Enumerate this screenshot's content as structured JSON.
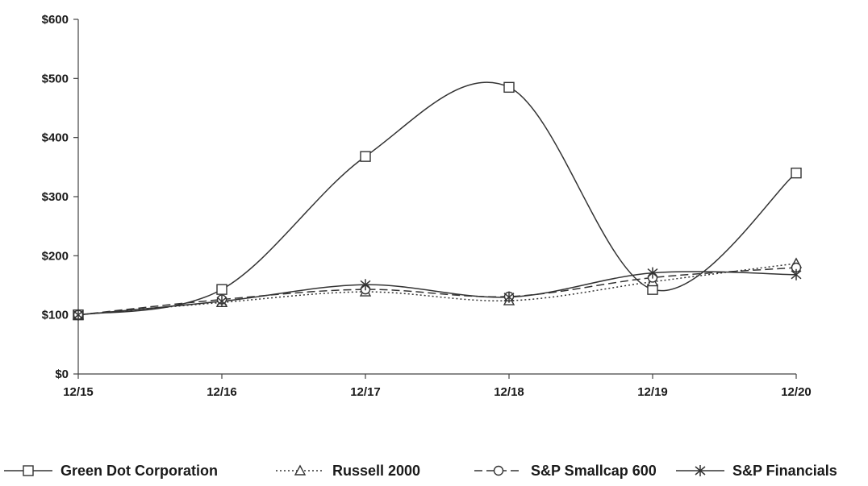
{
  "chart_data": {
    "type": "line",
    "title": "",
    "xlabel": "",
    "ylabel": "",
    "categories": [
      "12/15",
      "12/16",
      "12/17",
      "12/18",
      "12/19",
      "12/20"
    ],
    "y_ticks": [
      "$0",
      "$100",
      "$200",
      "$300",
      "$400",
      "$500",
      "$600"
    ],
    "ylim": [
      0,
      600
    ],
    "grid": false,
    "legend_position": "bottom",
    "series": [
      {
        "name": "Green Dot Corporation",
        "marker": "square",
        "dash": "solid",
        "values": [
          100,
          143,
          368,
          485,
          143,
          340
        ]
      },
      {
        "name": "Russell 2000",
        "marker": "triangle",
        "dash": "dotted",
        "values": [
          100,
          121,
          139,
          124,
          156,
          187
        ]
      },
      {
        "name": "S&P Smallcap 600",
        "marker": "circle",
        "dash": "dashed",
        "values": [
          100,
          126,
          143,
          131,
          163,
          180
        ]
      },
      {
        "name": "S&P Financials",
        "marker": "asterisk",
        "dash": "solid",
        "values": [
          100,
          123,
          151,
          130,
          171,
          168
        ]
      }
    ],
    "colors": {
      "line": "#333333",
      "axis": "#444444",
      "text": "#1a1a1a"
    }
  }
}
